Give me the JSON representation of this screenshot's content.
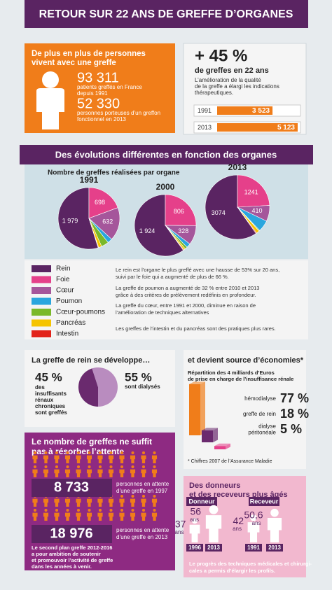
{
  "header": {
    "title": "RETOUR SUR 22 ANS DE GREFFE D’ORGANES"
  },
  "intro": {
    "heading": [
      "De plus en plus de personnes",
      "vivent avec une greffe"
    ],
    "stats": [
      {
        "value": "93 311",
        "text": [
          "patients greffés en France",
          "depuis 1991"
        ]
      },
      {
        "value": "52 330",
        "text": [
          "personnes porteuses d’un greffon",
          "fonctionnel en 2013"
        ]
      }
    ]
  },
  "growth": {
    "headline": "+ 45 %",
    "subtitle": "de greffes en 22 ans",
    "text": [
      "L’amélioration de la qualité",
      "de la greffe a élargi les indications",
      "thérapeutiques."
    ],
    "bars": [
      {
        "year": "1991",
        "value": 3523,
        "label": "3 523"
      },
      {
        "year": "2013",
        "value": 5123,
        "label": "5 123"
      }
    ],
    "color": "#f07d1a"
  },
  "organs": {
    "banner": "Des évolutions différentes en fonction des organes",
    "subtitle": "Nombre de greffes réalisées par organe",
    "legend": [
      {
        "name": "Rein",
        "color": "#5a2462"
      },
      {
        "name": "Foie",
        "color": "#e5408a"
      },
      {
        "name": "Cœur",
        "color": "#a5569b"
      },
      {
        "name": "Poumon",
        "color": "#2aa6de"
      },
      {
        "name": "Cœur-poumons",
        "color": "#7ab929"
      },
      {
        "name": "Pancréas",
        "color": "#f5c400"
      },
      {
        "name": "Intestin",
        "color": "#e2231a"
      }
    ],
    "pies": [
      {
        "year": "1991",
        "values": [
          1979,
          698,
          632,
          90,
          140,
          60,
          10
        ],
        "value_labels": [
          "1 979",
          "698",
          "632",
          null,
          null,
          null,
          null
        ]
      },
      {
        "year": "2000",
        "values": [
          1924,
          806,
          328,
          70,
          40,
          30,
          10
        ],
        "value_labels": [
          "1 924",
          "806",
          "328",
          null,
          null,
          null,
          null
        ]
      },
      {
        "year": "2013",
        "values": [
          3074,
          1241,
          410,
          299,
          20,
          80,
          20
        ],
        "value_labels": [
          "3074",
          "1241",
          "410",
          null,
          null,
          null,
          null
        ]
      }
    ],
    "notes": [
      [
        "Le rein est l’organe le plus greffé avec une hausse de 53% sur 20 ans,",
        "suivi par le foie qui a augmenté de plus de 66 %."
      ],
      [
        "La greffe de poumon a augmenté de 32 % entre 2010 et 2013",
        "grâce à des critères de prélèvement redéfinis en profondeur."
      ],
      [
        "La greffe du cœur, entre 1991 et 2000, diminue en raison de",
        "l’amélioration de techniques alternatives"
      ],
      [
        "Les greffes de l’intestin et du pancréas sont des pratiques plus rares."
      ]
    ]
  },
  "kidney": {
    "heading": "La greffe de rein se développe…",
    "split": [
      {
        "value": 45,
        "label": "45 %",
        "text": [
          "des",
          "insuffisants",
          "rénaux",
          "chroniques",
          "sont greffés"
        ],
        "color": "#6a2a6e"
      },
      {
        "value": 55,
        "label": "55 %",
        "text": [
          "sont dialysés"
        ],
        "color": "#b98cbf"
      }
    ]
  },
  "economy": {
    "heading": "et devient source d’économies*",
    "text": [
      "Répartition des 4 milliards d’Euros",
      "de prise en charge de l’insuffisance rénale"
    ],
    "items": [
      {
        "name": [
          "hémodialyse"
        ],
        "value": 77,
        "label": "77 %",
        "color": "#f07d1a"
      },
      {
        "name": [
          "greffe de rein"
        ],
        "value": 18,
        "label": "18 %",
        "color": "#6a2a6e"
      },
      {
        "name": [
          "dialyse",
          "péritonéale"
        ],
        "value": 5,
        "label": "5 %",
        "color": "#e5408a"
      }
    ],
    "footnote": "* Chiffres 2007 de l’Assurance Maladie"
  },
  "waiting": {
    "heading": [
      "Le nombre de greffes ne suffit",
      "pas à résorber l’attente"
    ],
    "stats": [
      {
        "value": "8 733",
        "text": [
          "personnes en attente",
          "d’une greffe en 1997"
        ]
      },
      {
        "value": "18 976",
        "text": [
          "personnes en attente",
          "d’une greffe en 2013"
        ]
      }
    ],
    "text": [
      "Le second plan greffe 2012-2016",
      "a pour ambition de soutenir",
      "et promouvoir l’activité de greffe",
      "dans les années à venir."
    ]
  },
  "ages": {
    "heading": [
      "Des donneurs",
      "et des receveurs plus âgés"
    ],
    "unit": "ans",
    "groups": [
      {
        "name": "Donneur",
        "points": [
          {
            "year": "1996",
            "age": 37
          },
          {
            "year": "2013",
            "age": 56
          }
        ]
      },
      {
        "name": "Receveur",
        "points": [
          {
            "year": "1991",
            "age": 42
          },
          {
            "year": "2013",
            "age": 50.6,
            "label": "50,6"
          }
        ]
      }
    ],
    "text": [
      "Le progrès des techniques médicales et chirurgi-",
      "cales a permis d’élargir les profils."
    ]
  }
}
